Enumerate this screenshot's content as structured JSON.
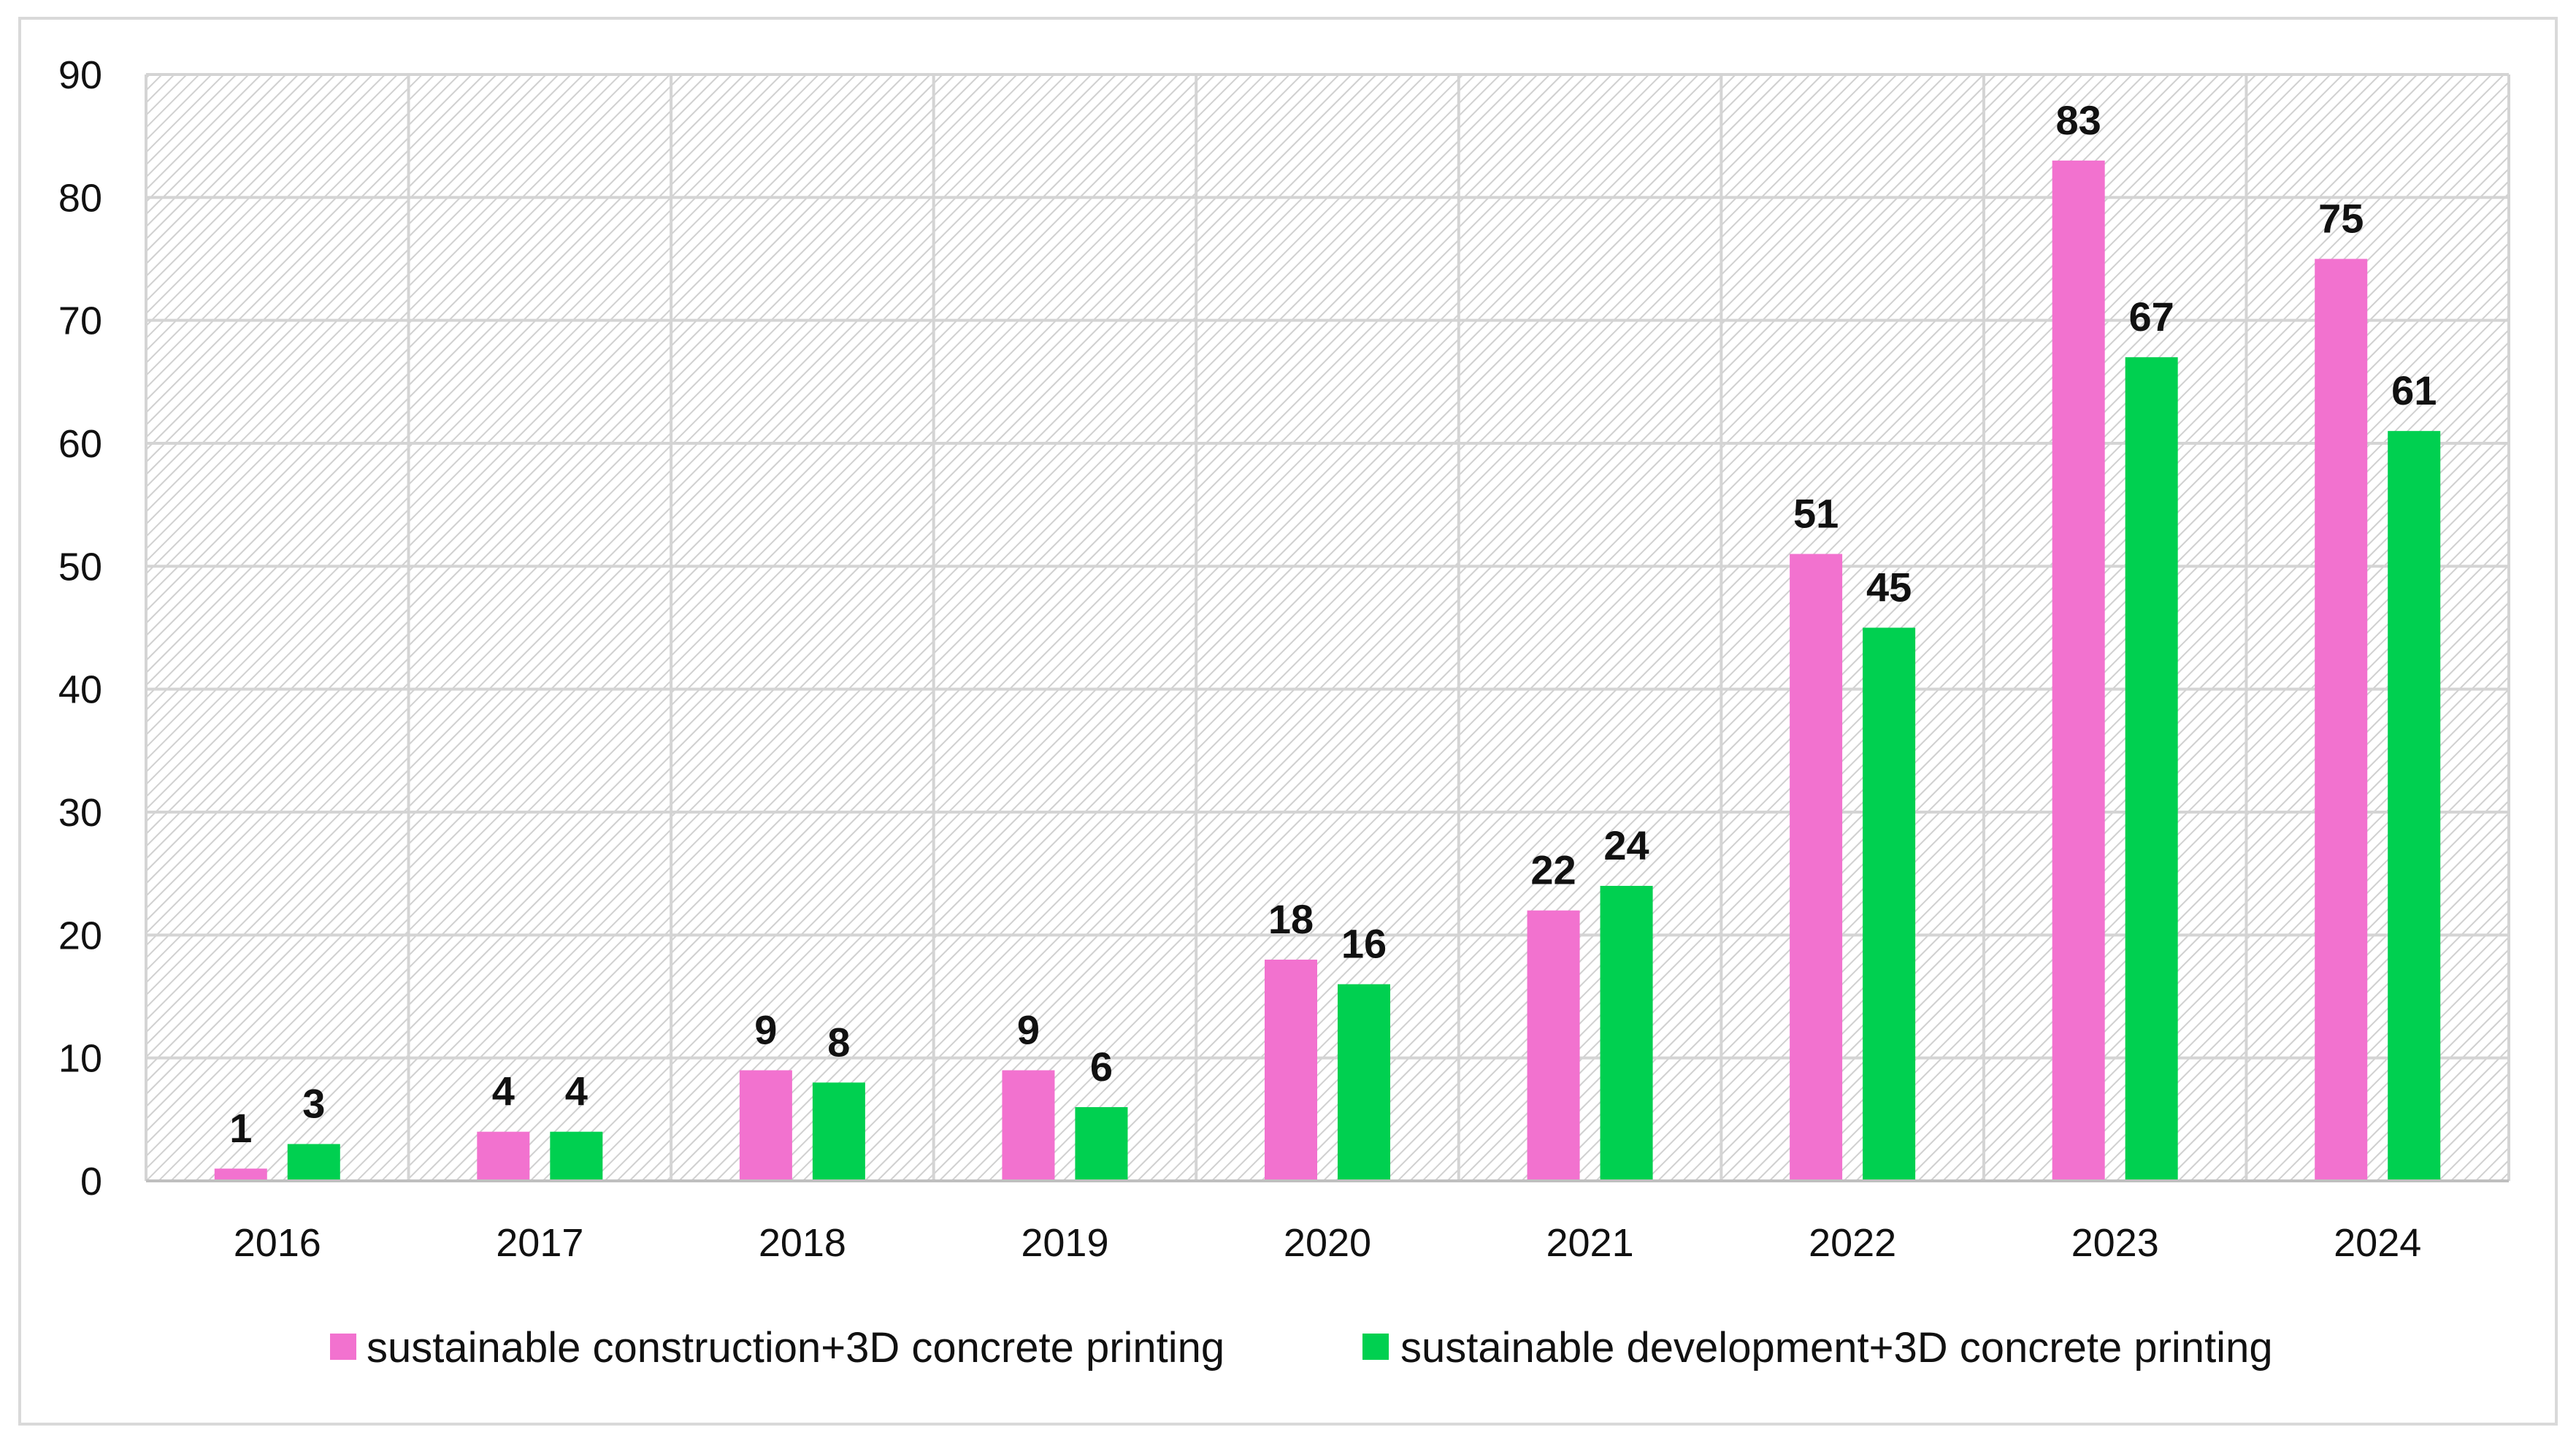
{
  "chart_data": {
    "type": "bar",
    "title": "",
    "xlabel": "",
    "ylabel": "",
    "categories": [
      "2016",
      "2017",
      "2018",
      "2019",
      "2020",
      "2021",
      "2022",
      "2023",
      "2024"
    ],
    "series": [
      {
        "name": "sustainable construction+3D concrete printing",
        "color": "#f272cf",
        "values": [
          1,
          4,
          9,
          9,
          18,
          22,
          51,
          83,
          75
        ]
      },
      {
        "name": "sustainable development+3D concrete printing",
        "color": "#00d050",
        "values": [
          3,
          4,
          8,
          6,
          16,
          24,
          45,
          67,
          61
        ]
      }
    ],
    "ylim": [
      0,
      90
    ],
    "yticks": [
      0,
      10,
      20,
      30,
      40,
      50,
      60,
      70,
      80,
      90
    ],
    "yticklabels": [
      "0",
      "10",
      "20",
      "30",
      "40",
      "50",
      "60",
      "70",
      "80",
      "90"
    ],
    "grid": true,
    "legend": "bottom",
    "data_labels": true
  }
}
